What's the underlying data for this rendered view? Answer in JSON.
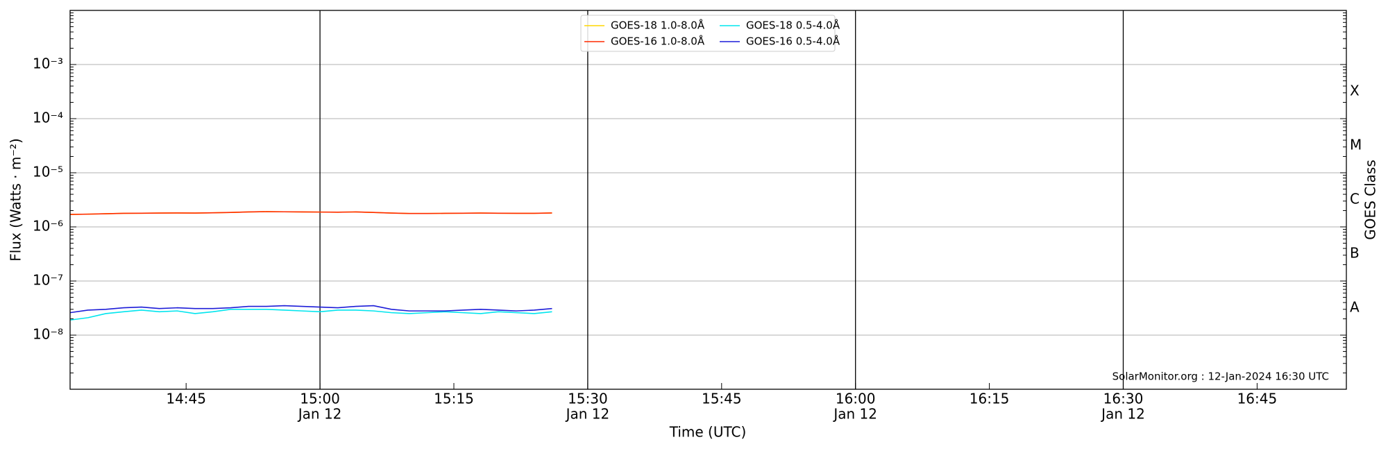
{
  "chart_data": {
    "type": "line",
    "y_label": "Flux (Watts · m⁻²)",
    "y2_label": "GOES Class",
    "x_label": "Time (UTC)",
    "annotation": "SolarMonitor.org : 12-Jan-2024 16:30 UTC",
    "log_y": true,
    "grid": true,
    "legend": "upper center",
    "xlim": [
      "14:32",
      "16:55"
    ],
    "xticks": [
      {
        "value": "14:45",
        "label": "14:45"
      },
      {
        "value": "15:00",
        "label": "15:00",
        "date": "Jan 12"
      },
      {
        "value": "15:15",
        "label": "15:15"
      },
      {
        "value": "15:30",
        "label": "15:30",
        "date": "Jan 12"
      },
      {
        "value": "15:45",
        "label": "15:45"
      },
      {
        "value": "16:00",
        "label": "16:00",
        "date": "Jan 12"
      },
      {
        "value": "16:15",
        "label": "16:15"
      },
      {
        "value": "16:30",
        "label": "16:30",
        "date": "Jan 12"
      },
      {
        "value": "16:45",
        "label": "16:45"
      }
    ],
    "ylim": [
      1e-09,
      0.01
    ],
    "yticks": [
      {
        "value": 1e-08,
        "label": "10⁻⁸"
      },
      {
        "value": 1e-07,
        "label": "10⁻⁷"
      },
      {
        "value": 1e-06,
        "label": "10⁻⁶"
      },
      {
        "value": 1e-05,
        "label": "10⁻⁵"
      },
      {
        "value": 0.0001,
        "label": "10⁻⁴"
      },
      {
        "value": 0.001,
        "label": "10⁻³"
      }
    ],
    "y2lim": [
      1e-09,
      0.01
    ],
    "y2ticks": [
      {
        "value": 3.162e-08,
        "label": "A"
      },
      {
        "value": 3.162e-07,
        "label": "B"
      },
      {
        "value": 3.162e-06,
        "label": "C"
      },
      {
        "value": 3.162e-05,
        "label": "M"
      },
      {
        "value": 0.0003162,
        "label": "X"
      }
    ],
    "x": [
      "14:32",
      "14:34",
      "14:36",
      "14:38",
      "14:40",
      "14:42",
      "14:44",
      "14:46",
      "14:48",
      "14:50",
      "14:52",
      "14:54",
      "14:56",
      "14:58",
      "15:00",
      "15:02",
      "15:04",
      "15:06",
      "15:08",
      "15:10",
      "15:12",
      "15:14",
      "15:16",
      "15:18",
      "15:20",
      "15:22",
      "15:24",
      "15:26"
    ],
    "series": [
      {
        "name": "GOES-18 1.0-8.0Å",
        "color": "#ffd700",
        "values": [
          1.7e-06,
          1.72e-06,
          1.75e-06,
          1.78e-06,
          1.79e-06,
          1.8e-06,
          1.81e-06,
          1.8e-06,
          1.82e-06,
          1.85e-06,
          1.89e-06,
          1.91e-06,
          1.9e-06,
          1.89e-06,
          1.88e-06,
          1.87e-06,
          1.89e-06,
          1.85e-06,
          1.8e-06,
          1.77e-06,
          1.77e-06,
          1.78e-06,
          1.79e-06,
          1.8e-06,
          1.79e-06,
          1.78e-06,
          1.78e-06,
          1.81e-06
        ]
      },
      {
        "name": "GOES-16 1.0-8.0Å",
        "color": "#ff2a00",
        "values": [
          1.7e-06,
          1.72e-06,
          1.75e-06,
          1.78e-06,
          1.79e-06,
          1.8e-06,
          1.81e-06,
          1.8e-06,
          1.82e-06,
          1.85e-06,
          1.89e-06,
          1.91e-06,
          1.9e-06,
          1.89e-06,
          1.88e-06,
          1.87e-06,
          1.89e-06,
          1.85e-06,
          1.8e-06,
          1.77e-06,
          1.77e-06,
          1.78e-06,
          1.79e-06,
          1.8e-06,
          1.79e-06,
          1.78e-06,
          1.78e-06,
          1.81e-06
        ]
      },
      {
        "name": "GOES-18 0.5-4.0Å",
        "color": "#00e5ee",
        "values": [
          1.9e-08,
          2.1e-08,
          2.5e-08,
          2.7e-08,
          2.9e-08,
          2.7e-08,
          2.8e-08,
          2.5e-08,
          2.7e-08,
          3e-08,
          3e-08,
          3e-08,
          2.9e-08,
          2.8e-08,
          2.7e-08,
          2.9e-08,
          2.9e-08,
          2.8e-08,
          2.6e-08,
          2.5e-08,
          2.6e-08,
          2.7e-08,
          2.6e-08,
          2.5e-08,
          2.7e-08,
          2.6e-08,
          2.5e-08,
          2.7e-08
        ]
      },
      {
        "name": "GOES-16 0.5-4.0Å",
        "color": "#1c1cd8",
        "values": [
          2.6e-08,
          2.9e-08,
          3e-08,
          3.2e-08,
          3.3e-08,
          3.1e-08,
          3.2e-08,
          3.1e-08,
          3.1e-08,
          3.2e-08,
          3.4e-08,
          3.4e-08,
          3.5e-08,
          3.4e-08,
          3.3e-08,
          3.2e-08,
          3.4e-08,
          3.5e-08,
          3e-08,
          2.8e-08,
          2.8e-08,
          2.8e-08,
          2.9e-08,
          3e-08,
          2.9e-08,
          2.8e-08,
          2.9e-08,
          3.1e-08
        ]
      }
    ]
  }
}
